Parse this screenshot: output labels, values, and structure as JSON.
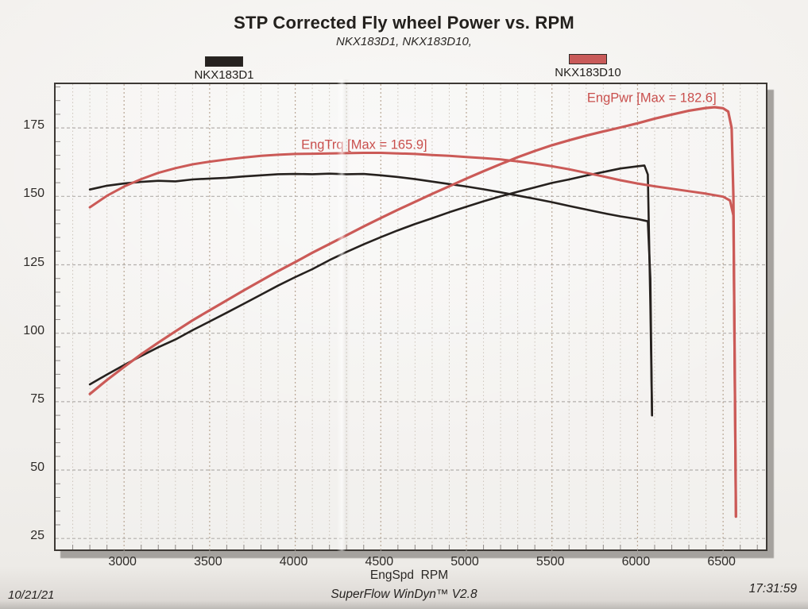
{
  "header": {
    "title": "STP Corrected Fly wheel Power vs. RPM",
    "subtitle": "NKX183D1, NKX183D10,"
  },
  "legend": {
    "entries": [
      {
        "label": "NKX183D1",
        "color": "#262220"
      },
      {
        "label": "NKX183D10",
        "color": "#c95a59"
      }
    ]
  },
  "footer": {
    "date": "10/21/21",
    "software": "SuperFlow WinDyn™ V2.8",
    "time": "17:31:59"
  },
  "colors": {
    "black_trace": "#26211e",
    "red_trace": "#cb5a57",
    "grid_minor": "#cdc5bb",
    "grid_major_v": "#b9a795",
    "grid_major_h": "#b3afac",
    "frame": "#3d3935",
    "shadow": "#a5a29e",
    "annotation": "#c94f4d"
  },
  "chart_data": {
    "type": "line",
    "title": "STP Corrected Fly wheel Power vs. RPM",
    "subtitle": "NKX183D1, NKX183D10,",
    "xlabel": "EngSpd  RPM",
    "ylabel": "",
    "xlim": [
      2600,
      6750
    ],
    "ylim": [
      21,
      191
    ],
    "xticks": [
      3000,
      3500,
      4000,
      4500,
      5000,
      5500,
      6000,
      6500
    ],
    "yticks": [
      25,
      50,
      75,
      100,
      125,
      150,
      175
    ],
    "x_minor_step": 100,
    "y_minor_step": 5,
    "grid": "dotted vertical lines every 100 RPM (darker every 500), dashed horizontal lines every 25 units",
    "legend_position": "top",
    "annotations": [
      {
        "text": "EngTrq [Max = 165.9]",
        "x": 4035,
        "y": 167.3,
        "color": "#c94f4d"
      },
      {
        "text": "EngPwr [Max = 182.6]",
        "x": 5705,
        "y": 184.5,
        "color": "#c94f4d"
      }
    ],
    "series": [
      {
        "name": "NKX183D1 EngTrq",
        "run": "NKX183D1",
        "color": "#26211e",
        "width": 2.6,
        "points": [
          [
            2800,
            152.5
          ],
          [
            2900,
            153.9
          ],
          [
            3000,
            154.7
          ],
          [
            3100,
            155.3
          ],
          [
            3200,
            155.7
          ],
          [
            3300,
            155.5
          ],
          [
            3400,
            156.2
          ],
          [
            3500,
            156.5
          ],
          [
            3600,
            156.8
          ],
          [
            3700,
            157.3
          ],
          [
            3800,
            157.7
          ],
          [
            3900,
            158.1
          ],
          [
            4000,
            158.2
          ],
          [
            4100,
            158.1
          ],
          [
            4200,
            158.3
          ],
          [
            4300,
            158.1
          ],
          [
            4400,
            158.2
          ],
          [
            4500,
            157.7
          ],
          [
            4600,
            157.1
          ],
          [
            4700,
            156.3
          ],
          [
            4800,
            155.4
          ],
          [
            4900,
            154.5
          ],
          [
            5000,
            153.6
          ],
          [
            5100,
            152.6
          ],
          [
            5200,
            151.5
          ],
          [
            5300,
            150.3
          ],
          [
            5400,
            149.1
          ],
          [
            5500,
            147.9
          ],
          [
            5600,
            146.5
          ],
          [
            5700,
            145.2
          ],
          [
            5800,
            143.9
          ],
          [
            5900,
            142.7
          ],
          [
            6000,
            141.7
          ],
          [
            6060,
            140.9
          ],
          [
            6075,
            120
          ],
          [
            6085,
            70
          ]
        ]
      },
      {
        "name": "NKX183D1 EngPwr",
        "run": "NKX183D1",
        "color": "#26211e",
        "width": 2.6,
        "points": [
          [
            2800,
            81.3
          ],
          [
            2900,
            84.9
          ],
          [
            3000,
            88.4
          ],
          [
            3100,
            91.7
          ],
          [
            3200,
            94.9
          ],
          [
            3300,
            97.7
          ],
          [
            3400,
            101.1
          ],
          [
            3500,
            104.3
          ],
          [
            3600,
            107.5
          ],
          [
            3700,
            110.8
          ],
          [
            3800,
            114.1
          ],
          [
            3900,
            117.4
          ],
          [
            4000,
            120.5
          ],
          [
            4100,
            123.4
          ],
          [
            4200,
            126.7
          ],
          [
            4300,
            129.7
          ],
          [
            4400,
            132.5
          ],
          [
            4500,
            135.1
          ],
          [
            4600,
            137.6
          ],
          [
            4700,
            139.9
          ],
          [
            4800,
            142.0
          ],
          [
            4900,
            144.2
          ],
          [
            5000,
            146.2
          ],
          [
            5100,
            148.2
          ],
          [
            5200,
            150.0
          ],
          [
            5300,
            151.7
          ],
          [
            5400,
            153.3
          ],
          [
            5500,
            154.9
          ],
          [
            5600,
            156.2
          ],
          [
            5700,
            157.6
          ],
          [
            5800,
            158.9
          ],
          [
            5900,
            160.2
          ],
          [
            6000,
            161.0
          ],
          [
            6040,
            161.3
          ],
          [
            6060,
            158
          ],
          [
            6075,
            110
          ],
          [
            6085,
            70
          ]
        ]
      },
      {
        "name": "NKX183D10 EngTrq",
        "run": "NKX183D10",
        "color": "#cb5a57",
        "width": 3,
        "points": [
          [
            2800,
            146.0
          ],
          [
            2900,
            150.2
          ],
          [
            3000,
            153.6
          ],
          [
            3100,
            156.3
          ],
          [
            3200,
            158.6
          ],
          [
            3300,
            160.3
          ],
          [
            3400,
            161.7
          ],
          [
            3500,
            162.7
          ],
          [
            3600,
            163.5
          ],
          [
            3700,
            164.2
          ],
          [
            3800,
            164.8
          ],
          [
            3900,
            165.2
          ],
          [
            4000,
            165.5
          ],
          [
            4100,
            165.6
          ],
          [
            4200,
            165.7
          ],
          [
            4300,
            165.8
          ],
          [
            4400,
            165.9
          ],
          [
            4500,
            165.9
          ],
          [
            4600,
            165.7
          ],
          [
            4700,
            165.5
          ],
          [
            4800,
            165.1
          ],
          [
            4900,
            164.8
          ],
          [
            5000,
            164.4
          ],
          [
            5100,
            164.0
          ],
          [
            5200,
            163.5
          ],
          [
            5300,
            162.8
          ],
          [
            5400,
            162.0
          ],
          [
            5500,
            161.0
          ],
          [
            5600,
            159.9
          ],
          [
            5700,
            158.6
          ],
          [
            5800,
            157.3
          ],
          [
            5900,
            155.9
          ],
          [
            6000,
            154.7
          ],
          [
            6100,
            153.7
          ],
          [
            6200,
            152.8
          ],
          [
            6300,
            151.9
          ],
          [
            6400,
            151.0
          ],
          [
            6500,
            149.9
          ],
          [
            6540,
            148.5
          ],
          [
            6560,
            143
          ],
          [
            6575,
            33
          ]
        ]
      },
      {
        "name": "NKX183D10 EngPwr",
        "run": "NKX183D10",
        "color": "#cb5a57",
        "width": 3.2,
        "points": [
          [
            2800,
            77.8
          ],
          [
            2900,
            82.9
          ],
          [
            3000,
            87.7
          ],
          [
            3100,
            92.3
          ],
          [
            3200,
            96.6
          ],
          [
            3300,
            100.7
          ],
          [
            3400,
            104.7
          ],
          [
            3500,
            108.4
          ],
          [
            3600,
            112.0
          ],
          [
            3700,
            115.7
          ],
          [
            3800,
            119.2
          ],
          [
            3900,
            122.7
          ],
          [
            4000,
            126.0
          ],
          [
            4100,
            129.4
          ],
          [
            4200,
            132.6
          ],
          [
            4300,
            135.8
          ],
          [
            4400,
            139.0
          ],
          [
            4500,
            142.1
          ],
          [
            4600,
            145.1
          ],
          [
            4700,
            148.0
          ],
          [
            4800,
            150.9
          ],
          [
            4900,
            153.7
          ],
          [
            5000,
            156.5
          ],
          [
            5100,
            159.2
          ],
          [
            5200,
            161.8
          ],
          [
            5300,
            164.3
          ],
          [
            5400,
            166.6
          ],
          [
            5500,
            168.7
          ],
          [
            5600,
            170.5
          ],
          [
            5700,
            172.2
          ],
          [
            5800,
            173.7
          ],
          [
            5900,
            175.2
          ],
          [
            6000,
            176.7
          ],
          [
            6100,
            178.4
          ],
          [
            6200,
            179.9
          ],
          [
            6300,
            181.3
          ],
          [
            6400,
            182.3
          ],
          [
            6450,
            182.6
          ],
          [
            6500,
            182.2
          ],
          [
            6530,
            181.0
          ],
          [
            6550,
            175
          ],
          [
            6560,
            150
          ],
          [
            6575,
            33
          ]
        ]
      }
    ]
  }
}
